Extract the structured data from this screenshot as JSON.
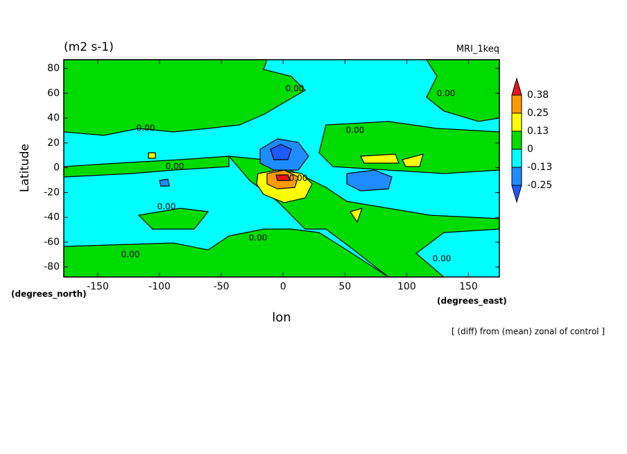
{
  "chart_data": {
    "type": "contour",
    "title": "(m2 s-1)",
    "subtitle": "MRI_1keq",
    "x_label": "lon",
    "y_label": "Latitude",
    "x_units": "(degrees_east)",
    "y_units": "(degrees_north)",
    "annotation": "[ (diff) from (mean) zonal of control ]",
    "xlim": [
      -177.5,
      175
    ],
    "xticks": [
      -150,
      -100,
      -50,
      0,
      50,
      100,
      150
    ],
    "ylim": [
      -88,
      87
    ],
    "yticks": [
      -80,
      -60,
      -40,
      -20,
      0,
      20,
      40,
      60,
      80
    ],
    "colorbar_levels": [
      -0.25,
      -0.13,
      0,
      0.13,
      0.25,
      0.38
    ],
    "colorbar_colors": [
      "#1e5aff",
      "#1e8cff",
      "#00ffff",
      "#00dc00",
      "#ffff00",
      "#ff9b00",
      "#e8141e"
    ],
    "contour_labels": [
      "0.00",
      "0.00",
      "0.00",
      "0.00",
      "0.00",
      "0.00",
      "0.00",
      "0.00",
      "0.00",
      "0.00"
    ]
  }
}
